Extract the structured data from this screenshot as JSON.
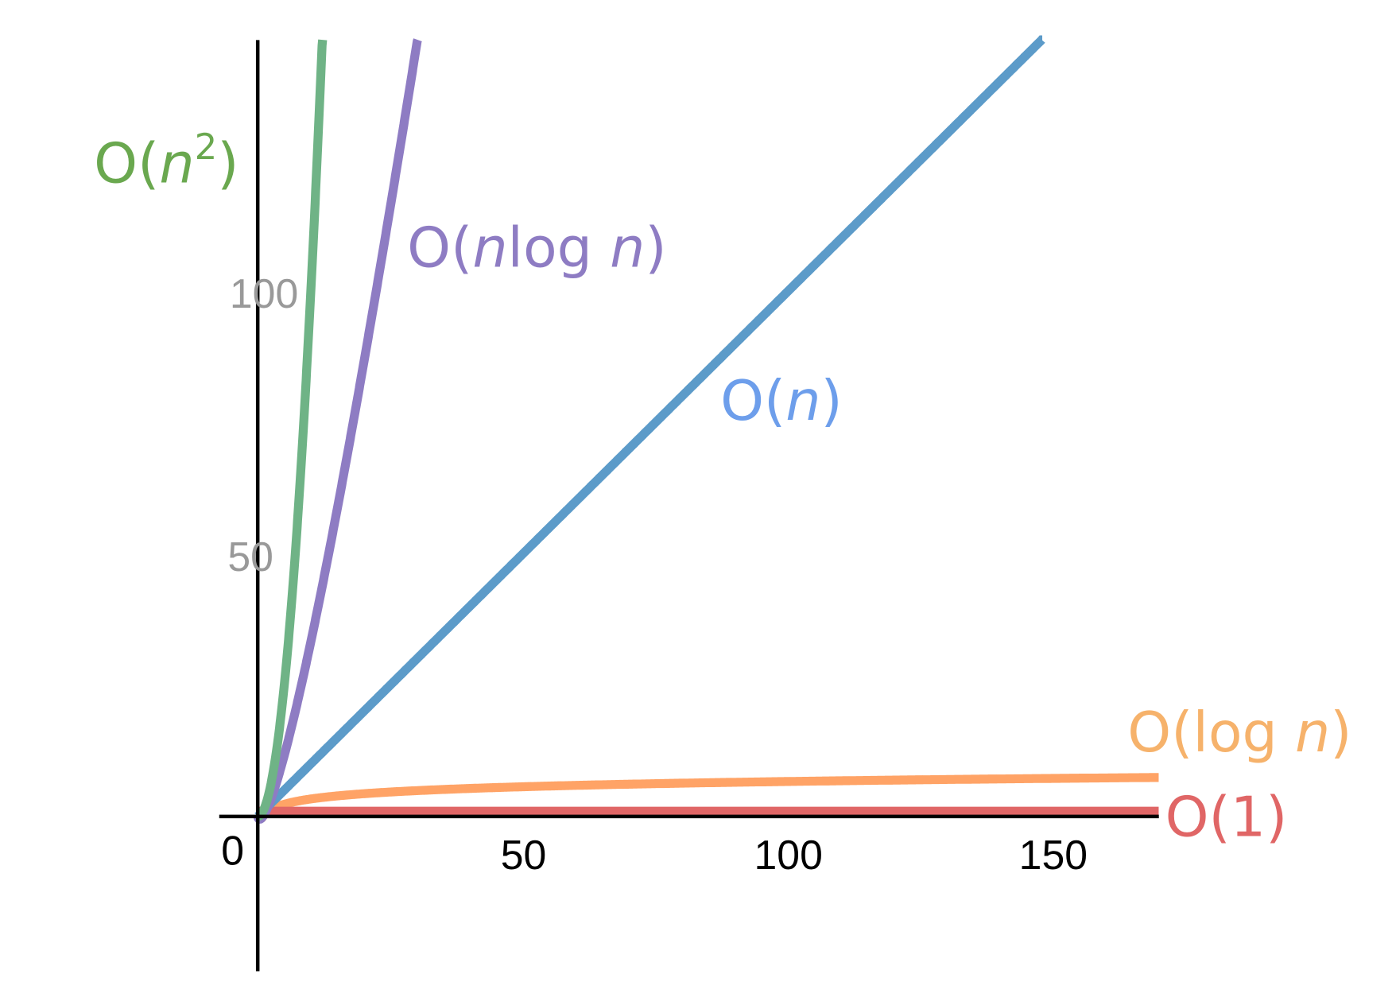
{
  "chart_data": {
    "type": "line",
    "title": "",
    "xlabel": "",
    "ylabel": "",
    "xlim": [
      -7.4,
      169.5
    ],
    "ylim": [
      -29,
      147.5
    ],
    "grid": false,
    "legend": "inline labels",
    "x_ticks": [
      "0",
      "50",
      "100",
      "150"
    ],
    "y_ticks": [
      "50",
      "100"
    ],
    "x_tick_values": [
      0,
      50,
      100,
      150
    ],
    "y_tick_values": [
      50,
      100
    ],
    "series": [
      {
        "name": "O(n^2)",
        "label_prefix": "O(",
        "label_var": "n",
        "label_sup": "2",
        "label_suffix": ")",
        "function": "n^2",
        "line_color": "#6fb386",
        "label_color": "#6aa84f"
      },
      {
        "name": "O(n log n)",
        "label_prefix": "O(",
        "label_var": "n",
        "label_mid": "log ",
        "label_var2": "n",
        "label_suffix": ")",
        "function": "n*log2(n)",
        "line_color": "#8e7cc3",
        "label_color": "#8e7cc3"
      },
      {
        "name": "O(n)",
        "label_prefix": "O(",
        "label_var": "n",
        "label_suffix": ")",
        "function": "n",
        "line_color": "#5c9bc9",
        "label_color": "#6d9eeb"
      },
      {
        "name": "O(log n)",
        "label_prefix": "O(log ",
        "label_var": "n",
        "label_suffix": ")",
        "function": "log2(n)",
        "line_color": "#ffa366",
        "label_color": "#f6b26b"
      },
      {
        "name": "O(1)",
        "label_text": "O(1)",
        "function": "1",
        "line_color": "#e06666",
        "label_color": "#e06666"
      }
    ]
  }
}
